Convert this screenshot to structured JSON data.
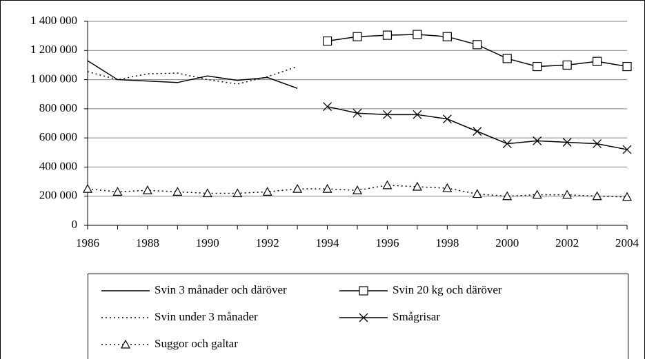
{
  "chart_data": {
    "type": "line",
    "x": [
      1986,
      1987,
      1988,
      1989,
      1990,
      1991,
      1992,
      1993,
      1994,
      1995,
      1996,
      1997,
      1998,
      1999,
      2000,
      2001,
      2002,
      2003,
      2004
    ],
    "xlim": [
      1986,
      2004
    ],
    "xticks": [
      1986,
      1988,
      1990,
      1992,
      1994,
      1996,
      1998,
      2000,
      2002,
      2004
    ],
    "ylim": [
      0,
      1400000
    ],
    "yticks": [
      0,
      {
        "value": 200000,
        "label": "200 000"
      },
      {
        "value": 400000,
        "label": "400 000"
      },
      {
        "value": 600000,
        "label": "600 000"
      },
      {
        "value": 800000,
        "label": "800 000"
      },
      {
        "value": 1000000,
        "label": "1 000 000"
      },
      {
        "value": 1200000,
        "label": "1 200 000"
      },
      {
        "value": 1400000,
        "label": "1 400 000"
      }
    ],
    "grid": true,
    "legend": "bottom",
    "series": [
      {
        "name": "Svin 3 månader och däröver",
        "color": "#000000",
        "line_style": "solid",
        "marker": "none",
        "values": [
          1130000,
          1000000,
          990000,
          980000,
          1025000,
          995000,
          1015000,
          940000,
          null,
          null,
          null,
          null,
          null,
          null,
          null,
          null,
          null,
          null,
          null
        ]
      },
      {
        "name": "Svin 20 kg och däröver",
        "color": "#000000",
        "line_style": "solid",
        "marker": "square",
        "values": [
          null,
          null,
          null,
          null,
          null,
          null,
          null,
          null,
          1265000,
          1295000,
          1305000,
          1310000,
          1295000,
          1240000,
          1145000,
          1090000,
          1100000,
          1125000,
          1090000
        ]
      },
      {
        "name": "Svin under 3 månader",
        "color": "#000000",
        "line_style": "dotted",
        "marker": "none",
        "values": [
          1055000,
          1000000,
          1040000,
          1045000,
          1000000,
          970000,
          1020000,
          1090000,
          null,
          null,
          null,
          null,
          null,
          null,
          null,
          null,
          null,
          null,
          null
        ]
      },
      {
        "name": "Smågrisar",
        "color": "#000000",
        "line_style": "solid",
        "marker": "x",
        "values": [
          null,
          null,
          null,
          null,
          null,
          null,
          null,
          null,
          815000,
          770000,
          760000,
          760000,
          730000,
          645000,
          560000,
          580000,
          570000,
          560000,
          520000
        ]
      },
      {
        "name": "Suggor och galtar",
        "color": "#000000",
        "line_style": "dotted",
        "marker": "triangle",
        "values": [
          250000,
          230000,
          240000,
          230000,
          220000,
          220000,
          230000,
          250000,
          250000,
          240000,
          275000,
          265000,
          255000,
          215000,
          200000,
          210000,
          210000,
          200000,
          195000
        ]
      }
    ]
  }
}
